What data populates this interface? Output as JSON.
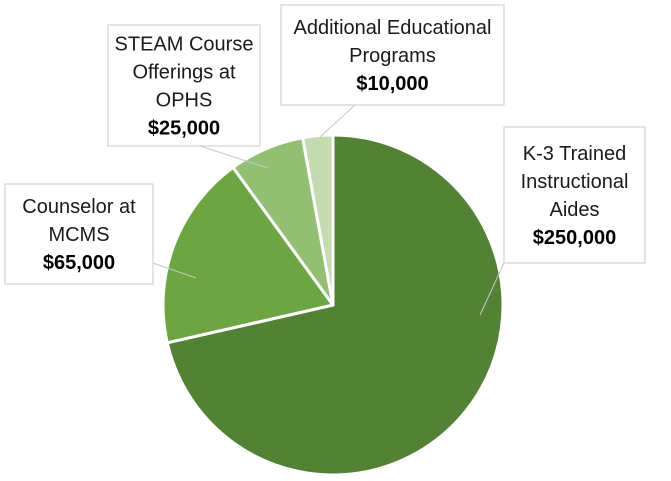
{
  "chart_data": {
    "type": "pie",
    "title": "",
    "start_angle_deg": 0,
    "direction": "clockwise",
    "slices": [
      {
        "label_lines": [
          "K-3 Trained",
          "Instructional",
          "Aides"
        ],
        "value": 250000,
        "value_label": "$250,000",
        "color": "#548235"
      },
      {
        "label_lines": [
          "Counselor at",
          "MCMS"
        ],
        "value": 65000,
        "value_label": "$65,000",
        "color": "#6da543"
      },
      {
        "label_lines": [
          "STEAM Course",
          "Offerings at",
          "OPHS"
        ],
        "value": 25000,
        "value_label": "$25,000",
        "color": "#93bf73"
      },
      {
        "label_lines": [
          "Additional Educational",
          "Programs"
        ],
        "value": 10000,
        "value_label": "$10,000",
        "color": "#c4dbb1"
      }
    ],
    "legend": "none"
  }
}
